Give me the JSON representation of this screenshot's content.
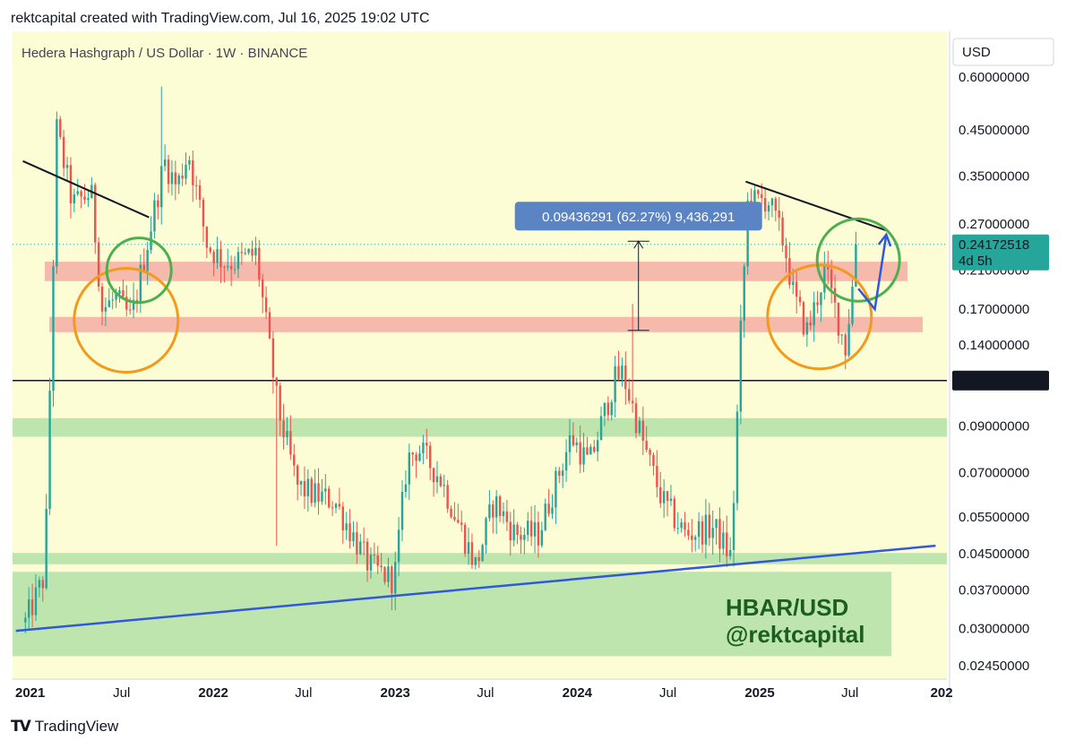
{
  "header": {
    "text": "rektcapital created with TradingView.com, Jul 16, 2025 19:02 UTC"
  },
  "footer": {
    "brand": "TradingView",
    "icon": "tradingview-logo-icon"
  },
  "colors": {
    "plot_bg": "#fdfdd5",
    "up": "#26a69a",
    "down": "#ef5350",
    "red_zone": "#f4a9a1",
    "green_zone": "#a8dca0",
    "trendline_blue": "#2f59d8",
    "circle_orange": "#f39a1c",
    "circle_green": "#4caf50",
    "measure_label_bg": "#5b84c4",
    "price_label_bg": "#26a69a"
  },
  "chart_data": {
    "type": "candlestick",
    "title": "Hedera Hashgraph / US Dollar · 1W · BINANCE",
    "currency_label": "USD",
    "y_scale": "log",
    "y_ticks": [
      "0.60000000",
      "0.45000000",
      "0.35000000",
      "0.27000000",
      "0.21000000",
      "0.17000000",
      "0.14000000",
      "0.11533779",
      "0.09000000",
      "0.07000000",
      "0.05500000",
      "0.04500000",
      "0.03700000",
      "0.03000000",
      "0.02450000"
    ],
    "x_ticks": [
      "2021",
      "Jul",
      "2022",
      "Jul",
      "2023",
      "Jul",
      "2024",
      "Jul",
      "2025",
      "Jul",
      "202"
    ],
    "x_tick_dates": [
      "2021-01-01",
      "2021-07-01",
      "2022-01-01",
      "2022-07-01",
      "2023-01-01",
      "2023-07-01",
      "2024-01-01",
      "2024-07-01",
      "2025-01-01",
      "2025-07-01",
      "2026-01-01"
    ],
    "current_price": {
      "value": "0.24172518",
      "countdown": "4d 5h"
    },
    "horizontal_level": {
      "value": "0.11533779"
    },
    "measure": {
      "text": "0.09436291 (62.27%) 9,436,291",
      "from": 0.1515,
      "to": 0.2459,
      "date": "2024-03-01"
    },
    "resistance_zones": [
      {
        "low": 0.198,
        "high": 0.22
      },
      {
        "low": 0.15,
        "high": 0.163
      }
    ],
    "support_zones": [
      {
        "low": 0.085,
        "high": 0.094
      },
      {
        "low": 0.0425,
        "high": 0.0452
      },
      {
        "low": 0.0258,
        "high": 0.0408
      }
    ],
    "annotation": {
      "line1": "HBAR/USD",
      "line2": "@rektcapital"
    },
    "anchors": [
      [
        "2020-12-20",
        0.031
      ],
      [
        "2021-01-28",
        0.04
      ],
      [
        "2021-02-21",
        0.45
      ],
      [
        "2021-03-25",
        0.3
      ],
      [
        "2021-05-01",
        0.32
      ],
      [
        "2021-05-23",
        0.17
      ],
      [
        "2021-06-20",
        0.18
      ],
      [
        "2021-07-20",
        0.16
      ],
      [
        "2021-09-12",
        0.32
      ],
      [
        "2021-09-25",
        0.38
      ],
      [
        "2021-10-20",
        0.33
      ],
      [
        "2021-11-12",
        0.4
      ],
      [
        "2021-12-20",
        0.24
      ],
      [
        "2022-01-22",
        0.22
      ],
      [
        "2022-02-18",
        0.22
      ],
      [
        "2022-03-28",
        0.23
      ],
      [
        "2022-05-10",
        0.1
      ],
      [
        "2022-06-18",
        0.065
      ],
      [
        "2022-07-20",
        0.062
      ],
      [
        "2022-09-01",
        0.06
      ],
      [
        "2022-11-10",
        0.042
      ],
      [
        "2022-12-30",
        0.039
      ],
      [
        "2023-01-25",
        0.075
      ],
      [
        "2023-02-15",
        0.08
      ],
      [
        "2023-04-01",
        0.068
      ],
      [
        "2023-06-12",
        0.042
      ],
      [
        "2023-07-18",
        0.06
      ],
      [
        "2023-08-30",
        0.05
      ],
      [
        "2023-10-15",
        0.05
      ],
      [
        "2023-12-20",
        0.085
      ],
      [
        "2024-01-25",
        0.073
      ],
      [
        "2024-03-15",
        0.115
      ],
      [
        "2024-04-01",
        0.12
      ],
      [
        "2024-05-15",
        0.08
      ],
      [
        "2024-06-20",
        0.06
      ],
      [
        "2024-08-05",
        0.05
      ],
      [
        "2024-10-01",
        0.052
      ],
      [
        "2024-11-05",
        0.044
      ],
      [
        "2024-11-25",
        0.16
      ],
      [
        "2024-12-08",
        0.3
      ],
      [
        "2025-01-17",
        0.31
      ],
      [
        "2025-02-20",
        0.24
      ],
      [
        "2025-03-11",
        0.18
      ],
      [
        "2025-04-07",
        0.15
      ],
      [
        "2025-05-12",
        0.21
      ],
      [
        "2025-06-22",
        0.138
      ],
      [
        "2025-07-16",
        0.2417
      ]
    ],
    "wick_spikes": [
      {
        "date": "2021-09-18",
        "high": 0.57
      },
      {
        "date": "2024-04-24",
        "high": 0.175
      },
      {
        "date": "2022-05-09",
        "low": 0.047
      }
    ],
    "trendlines": [
      {
        "color": "black",
        "from": [
          "2020-12-15",
          0.38
        ],
        "to": [
          "2021-08-25",
          0.28
        ]
      },
      {
        "color": "black",
        "from": [
          "2024-12-04",
          0.34
        ],
        "to": [
          "2025-09-15",
          0.26
        ]
      },
      {
        "color": "blue",
        "from": [
          "2020-12-01",
          0.0296
        ],
        "to": [
          "2025-12-20",
          0.047
        ]
      }
    ],
    "projection_arrow": {
      "points": [
        [
          "2025-07-18",
          0.19
        ],
        [
          "2025-08-20",
          0.17
        ],
        [
          "2025-09-12",
          0.255
        ]
      ]
    },
    "circles": [
      {
        "color": "orange",
        "date": "2021-07-10",
        "price": 0.16,
        "radius": 58
      },
      {
        "color": "green",
        "date": "2021-08-05",
        "price": 0.21,
        "radius": 36
      },
      {
        "color": "orange",
        "date": "2025-05-01",
        "price": 0.163,
        "radius": 58
      },
      {
        "color": "green",
        "date": "2025-07-18",
        "price": 0.222,
        "radius": 46
      }
    ]
  }
}
